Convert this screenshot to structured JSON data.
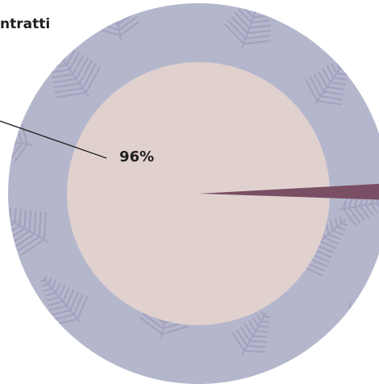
{
  "chart_data": {
    "type": "pie",
    "title": "",
    "slices": [
      {
        "label": "96%",
        "value": 96,
        "color": "#e0d1ce"
      },
      {
        "label": "",
        "value": 4,
        "color": "#7a4e64"
      }
    ],
    "side_text": "ntratti",
    "colors": {
      "ring": "#b4b7cc",
      "fern": "#8a7aa6",
      "leader_line": "#1f1f1f"
    }
  }
}
